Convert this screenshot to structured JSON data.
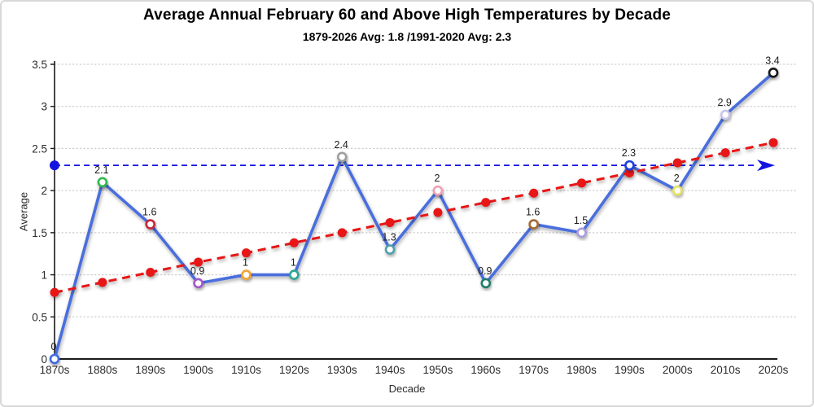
{
  "window": {
    "background_color": "#ffffff",
    "border_color": "#d8d8d8"
  },
  "chart_data": {
    "type": "line",
    "title": "Average Annual February 60 and Above High Temperatures by Decade",
    "subtitle": "1879-2026 Avg: 1.8 /1991-2020 Avg: 2.3",
    "xlabel": "Decade",
    "ylabel": "Average",
    "categories": [
      "1870s",
      "1880s",
      "1890s",
      "1900s",
      "1910s",
      "1920s",
      "1930s",
      "1940s",
      "1950s",
      "1960s",
      "1970s",
      "1980s",
      "1990s",
      "2000s",
      "2010s",
      "2020s"
    ],
    "ylim": [
      0,
      3.5
    ],
    "ytick_step": 0.5,
    "ytick_labels": [
      "0",
      "0.5",
      "1",
      "1.5",
      "2",
      "2.5",
      "3",
      "3.5"
    ],
    "grid": "horizontal-dotted",
    "grid_color": "#cfcfcf",
    "axis_color": "#1a1a1a",
    "legend": "none",
    "series": [
      {
        "name": "decade-average",
        "style": "solid-line-open-markers",
        "color": "#4a6edd",
        "values": [
          0,
          2.1,
          1.6,
          0.9,
          1,
          1,
          2.4,
          1.3,
          2,
          0.9,
          1.6,
          1.5,
          2.3,
          2,
          2.9,
          3.4
        ],
        "data_labels": [
          "0",
          "2.1",
          "1.6",
          "0.9",
          "1",
          "1",
          "2.4",
          "1.3",
          "2",
          "0.9",
          "1.6",
          "1.5",
          "2.3",
          "2",
          "2.9",
          "3.4"
        ],
        "marker_colors": [
          "#4169e1",
          "#2eb84d",
          "#c62839",
          "#a257c8",
          "#f2a430",
          "#2aa792",
          "#9e9e9e",
          "#4f9fab",
          "#f2a0b4",
          "#1e7d6a",
          "#a36a32",
          "#a89de0",
          "#1f3fdd",
          "#e6e25e",
          "#c9c6ea",
          "#161616"
        ]
      },
      {
        "name": "trend-line",
        "style": "dashed-line-filled-markers",
        "color": "#e81212",
        "values": [
          0.79,
          0.91,
          1.03,
          1.15,
          1.26,
          1.38,
          1.5,
          1.62,
          1.74,
          1.86,
          1.97,
          2.09,
          2.21,
          2.33,
          2.45,
          2.57
        ]
      }
    ],
    "reference_line": {
      "name": "1991-2020-average",
      "value": 2.3,
      "style": "dashed-arrow",
      "color": "#1414e0"
    }
  }
}
